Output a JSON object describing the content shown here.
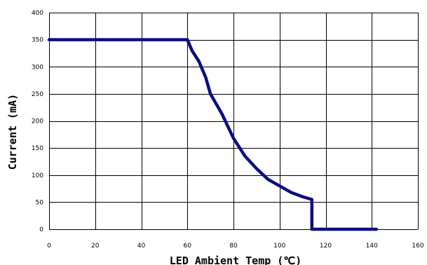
{
  "chart_data": {
    "type": "line",
    "title": "",
    "xlabel": "LED Ambient Temp (℃)",
    "ylabel": "Current (mA)",
    "xlim": [
      0,
      160
    ],
    "ylim": [
      0,
      400
    ],
    "x_ticks": [
      0,
      20,
      40,
      60,
      80,
      100,
      120,
      140,
      160
    ],
    "y_ticks": [
      0,
      50,
      100,
      150,
      200,
      250,
      300,
      350,
      400
    ],
    "grid": true,
    "series": [
      {
        "color": "#0d0d80",
        "points": [
          [
            0,
            350
          ],
          [
            60,
            350
          ],
          [
            62,
            330
          ],
          [
            65,
            310
          ],
          [
            68,
            280
          ],
          [
            70,
            250
          ],
          [
            75,
            213
          ],
          [
            80,
            168
          ],
          [
            85,
            135
          ],
          [
            90,
            112
          ],
          [
            95,
            92
          ],
          [
            100,
            80
          ],
          [
            105,
            68
          ],
          [
            110,
            60
          ],
          [
            114,
            55
          ],
          [
            114,
            0
          ],
          [
            142,
            0
          ]
        ]
      }
    ]
  }
}
